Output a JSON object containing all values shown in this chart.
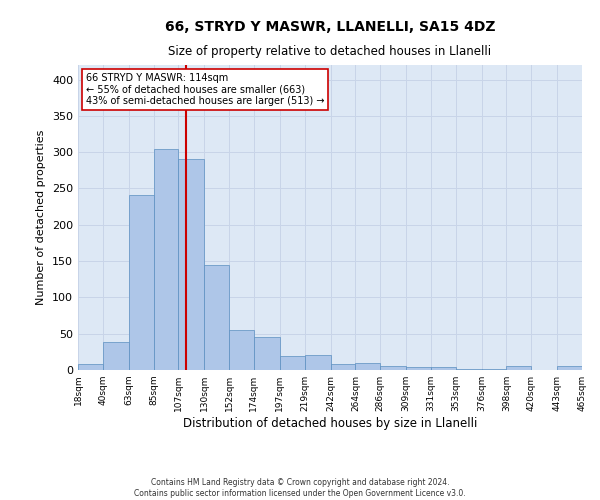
{
  "title_line1": "66, STRYD Y MASWR, LLANELLI, SA15 4DZ",
  "title_line2": "Size of property relative to detached houses in Llanelli",
  "xlabel": "Distribution of detached houses by size in Llanelli",
  "ylabel": "Number of detached properties",
  "footer_line1": "Contains HM Land Registry data © Crown copyright and database right 2024.",
  "footer_line2": "Contains public sector information licensed under the Open Government Licence v3.0.",
  "annotation_line1": "66 STRYD Y MASWR: 114sqm",
  "annotation_line2": "← 55% of detached houses are smaller (663)",
  "annotation_line3": "43% of semi-detached houses are larger (513) →",
  "property_size": 114,
  "bar_color": "#aec6e8",
  "bar_edge_color": "#5a8fc0",
  "vline_color": "#cc0000",
  "grid_color": "#c8d4e8",
  "background_color": "#dde8f5",
  "bins": [
    18,
    40,
    63,
    85,
    107,
    130,
    152,
    174,
    197,
    219,
    242,
    264,
    286,
    309,
    331,
    353,
    376,
    398,
    420,
    443,
    465
  ],
  "bin_labels": [
    "18sqm",
    "40sqm",
    "63sqm",
    "85sqm",
    "107sqm",
    "130sqm",
    "152sqm",
    "174sqm",
    "197sqm",
    "219sqm",
    "242sqm",
    "264sqm",
    "286sqm",
    "309sqm",
    "331sqm",
    "353sqm",
    "376sqm",
    "398sqm",
    "420sqm",
    "443sqm",
    "465sqm"
  ],
  "counts": [
    8,
    39,
    241,
    305,
    291,
    144,
    55,
    45,
    19,
    20,
    8,
    10,
    5,
    4,
    4,
    2,
    2,
    5,
    0,
    5
  ],
  "ylim": [
    0,
    420
  ],
  "yticks": [
    0,
    50,
    100,
    150,
    200,
    250,
    300,
    350,
    400
  ]
}
